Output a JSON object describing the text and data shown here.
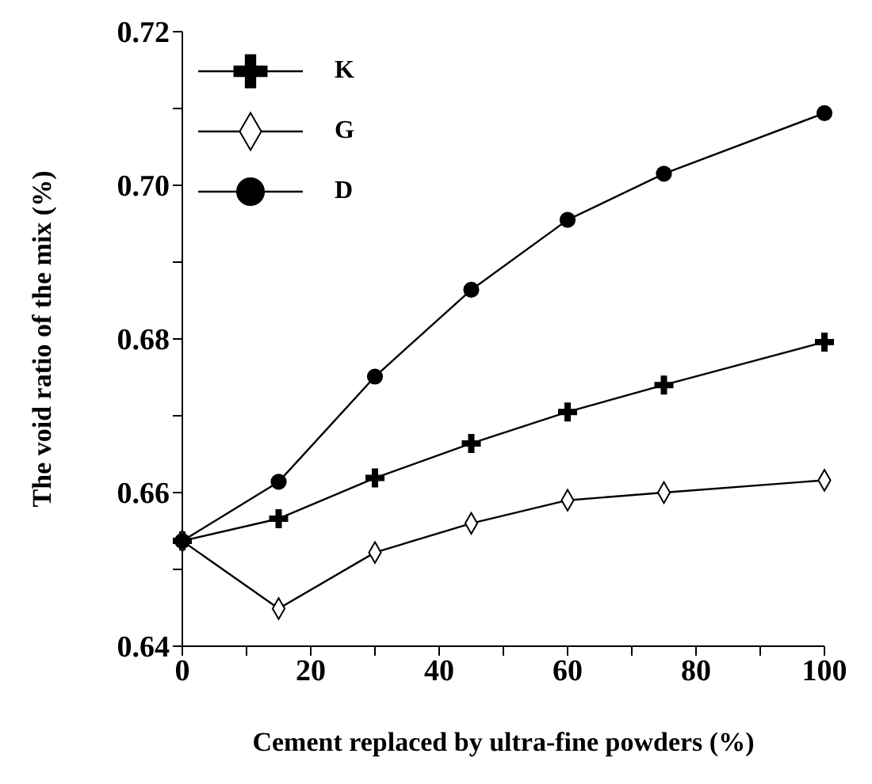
{
  "chart_data": {
    "type": "line",
    "xlabel": "Cement replaced by ultra-fine powders (%)",
    "ylabel": "The void ratio of the mix (%)",
    "x": [
      0,
      15,
      30,
      45,
      60,
      75,
      100
    ],
    "series": [
      {
        "name": "K",
        "color": "#000000",
        "marker": "cross",
        "values": [
          0.6537,
          0.6566,
          0.6619,
          0.6664,
          0.6705,
          0.674,
          0.6796
        ]
      },
      {
        "name": "G",
        "color": "#000000",
        "marker": "diamond",
        "values": [
          0.6537,
          0.6449,
          0.6522,
          0.656,
          0.659,
          0.66,
          0.6616
        ]
      },
      {
        "name": "D",
        "color": "#000000",
        "marker": "circle",
        "values": [
          0.6537,
          0.6614,
          0.6751,
          0.6864,
          0.6955,
          0.7015,
          0.7094
        ]
      }
    ],
    "xlim": [
      0,
      100
    ],
    "xticks": [
      0,
      {
        "value": 10,
        "label": null
      },
      20,
      {
        "value": 30,
        "label": null
      },
      40,
      {
        "value": 50,
        "label": null
      },
      60,
      {
        "value": 70,
        "label": null
      },
      80,
      {
        "value": 90,
        "label": null
      },
      100
    ],
    "ylim": [
      0.64,
      0.72
    ],
    "yticks": [
      {
        "value": 0.64,
        "label": "0.64"
      },
      {
        "value": 0.65,
        "label": null
      },
      {
        "value": 0.66,
        "label": "0.66"
      },
      {
        "value": 0.67,
        "label": null
      },
      {
        "value": 0.68,
        "label": "0.68"
      },
      {
        "value": 0.69,
        "label": null
      },
      {
        "value": 0.7,
        "label": "0.70"
      },
      {
        "value": 0.71,
        "label": null
      },
      {
        "value": 0.72,
        "label": "0.72"
      }
    ],
    "legend": "top left",
    "grid": false,
    "line_style": "solid"
  }
}
